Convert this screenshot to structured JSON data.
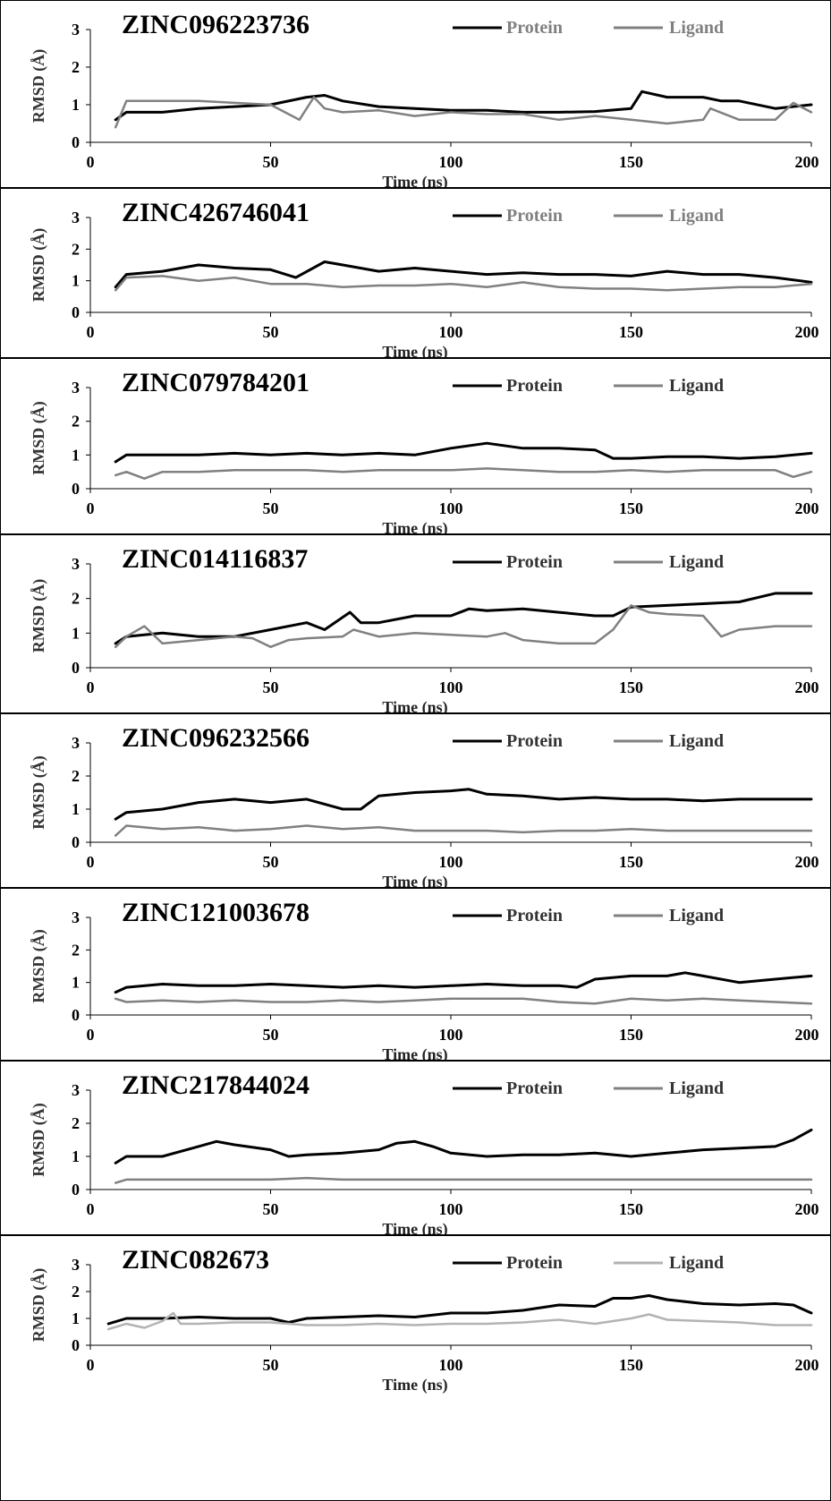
{
  "figure": {
    "x_ticks": [
      "0",
      "50",
      "100",
      "150",
      "200"
    ],
    "y_ticks": [
      "0",
      "1",
      "2",
      "3"
    ],
    "xlabel": "Time (ns)",
    "ylabel": "RMSD (Å)",
    "legend": {
      "protein": "Protein",
      "ligand": "Ligand"
    }
  },
  "chart_data": [
    {
      "type": "line",
      "title": "ZINC096223736",
      "xlabel": "Time (ns)",
      "ylabel": "RMSD (Å)",
      "xlim": [
        0,
        200
      ],
      "ylim": [
        0,
        3
      ],
      "legend_position": "top-right",
      "colors": {
        "protein": "#000000",
        "ligand": "#808080"
      },
      "series": [
        {
          "name": "Protein",
          "x": [
            7,
            10,
            20,
            30,
            40,
            50,
            60,
            65,
            70,
            80,
            90,
            100,
            110,
            120,
            130,
            140,
            150,
            153,
            160,
            170,
            175,
            180,
            190,
            200
          ],
          "values": [
            0.6,
            0.8,
            0.8,
            0.9,
            0.95,
            1.0,
            1.2,
            1.25,
            1.1,
            0.95,
            0.9,
            0.85,
            0.85,
            0.8,
            0.8,
            0.82,
            0.9,
            1.35,
            1.2,
            1.2,
            1.1,
            1.1,
            0.9,
            1.0
          ]
        },
        {
          "name": "Ligand",
          "x": [
            7,
            10,
            20,
            30,
            40,
            50,
            58,
            62,
            65,
            70,
            80,
            90,
            100,
            110,
            120,
            130,
            140,
            150,
            160,
            170,
            172,
            180,
            190,
            195,
            200
          ],
          "values": [
            0.4,
            1.1,
            1.1,
            1.1,
            1.05,
            1.0,
            0.6,
            1.2,
            0.9,
            0.8,
            0.85,
            0.7,
            0.8,
            0.75,
            0.75,
            0.6,
            0.7,
            0.6,
            0.5,
            0.6,
            0.9,
            0.6,
            0.6,
            1.05,
            0.8
          ]
        }
      ]
    },
    {
      "type": "line",
      "title": "ZINC426746041",
      "xlabel": "Time (ns)",
      "ylabel": "RMSD (Å)",
      "xlim": [
        0,
        200
      ],
      "ylim": [
        0,
        3
      ],
      "legend_position": "top-right",
      "colors": {
        "protein": "#000000",
        "ligand": "#808080"
      },
      "series": [
        {
          "name": "Protein",
          "x": [
            7,
            10,
            20,
            30,
            40,
            50,
            57,
            65,
            70,
            80,
            90,
            100,
            110,
            120,
            130,
            140,
            150,
            160,
            170,
            180,
            190,
            200
          ],
          "values": [
            0.8,
            1.2,
            1.3,
            1.5,
            1.4,
            1.35,
            1.1,
            1.6,
            1.5,
            1.3,
            1.4,
            1.3,
            1.2,
            1.25,
            1.2,
            1.2,
            1.15,
            1.3,
            1.2,
            1.2,
            1.1,
            0.95
          ]
        },
        {
          "name": "Ligand",
          "x": [
            7,
            10,
            20,
            30,
            40,
            50,
            60,
            70,
            80,
            90,
            100,
            110,
            120,
            130,
            140,
            150,
            160,
            170,
            180,
            190,
            200
          ],
          "values": [
            0.7,
            1.1,
            1.15,
            1.0,
            1.1,
            0.9,
            0.9,
            0.8,
            0.85,
            0.85,
            0.9,
            0.8,
            0.95,
            0.8,
            0.75,
            0.75,
            0.7,
            0.75,
            0.8,
            0.8,
            0.9
          ]
        }
      ]
    },
    {
      "type": "line",
      "title": "ZINC079784201",
      "xlabel": "Time (ns)",
      "ylabel": "RMSD (Å)",
      "xlim": [
        0,
        200
      ],
      "ylim": [
        0,
        3
      ],
      "legend_position": "top-right",
      "colors": {
        "protein": "#000000",
        "ligand": "#808080"
      },
      "series": [
        {
          "name": "Protein",
          "x": [
            7,
            10,
            20,
            30,
            40,
            50,
            60,
            70,
            80,
            90,
            100,
            110,
            120,
            130,
            140,
            145,
            150,
            160,
            170,
            180,
            190,
            200
          ],
          "values": [
            0.8,
            1.0,
            1.0,
            1.0,
            1.05,
            1.0,
            1.05,
            1.0,
            1.05,
            1.0,
            1.2,
            1.35,
            1.2,
            1.2,
            1.15,
            0.9,
            0.9,
            0.95,
            0.95,
            0.9,
            0.95,
            1.05
          ]
        },
        {
          "name": "Ligand",
          "x": [
            7,
            10,
            15,
            20,
            30,
            40,
            50,
            60,
            70,
            80,
            90,
            100,
            110,
            120,
            130,
            140,
            150,
            160,
            170,
            180,
            190,
            195,
            200
          ],
          "values": [
            0.4,
            0.5,
            0.3,
            0.5,
            0.5,
            0.55,
            0.55,
            0.55,
            0.5,
            0.55,
            0.55,
            0.55,
            0.6,
            0.55,
            0.5,
            0.5,
            0.55,
            0.5,
            0.55,
            0.55,
            0.55,
            0.35,
            0.5
          ]
        }
      ]
    },
    {
      "type": "line",
      "title": "ZINC014116837",
      "xlabel": "Time (ns)",
      "ylabel": "RMSD (Å)",
      "xlim": [
        0,
        200
      ],
      "ylim": [
        0,
        3
      ],
      "legend_position": "top-right",
      "colors": {
        "protein": "#000000",
        "ligand": "#808080"
      },
      "series": [
        {
          "name": "Protein",
          "x": [
            7,
            10,
            20,
            30,
            40,
            50,
            60,
            65,
            72,
            75,
            80,
            90,
            100,
            105,
            110,
            120,
            130,
            140,
            145,
            150,
            160,
            170,
            180,
            190,
            200
          ],
          "values": [
            0.7,
            0.9,
            1.0,
            0.9,
            0.9,
            1.1,
            1.3,
            1.1,
            1.6,
            1.3,
            1.3,
            1.5,
            1.5,
            1.7,
            1.65,
            1.7,
            1.6,
            1.5,
            1.5,
            1.75,
            1.8,
            1.85,
            1.9,
            2.15,
            2.15
          ]
        },
        {
          "name": "Ligand",
          "x": [
            7,
            10,
            15,
            20,
            30,
            40,
            45,
            50,
            55,
            60,
            70,
            73,
            80,
            90,
            100,
            110,
            115,
            120,
            130,
            140,
            145,
            150,
            155,
            160,
            170,
            175,
            180,
            190,
            200
          ],
          "values": [
            0.6,
            0.9,
            1.2,
            0.7,
            0.8,
            0.9,
            0.85,
            0.6,
            0.8,
            0.85,
            0.9,
            1.1,
            0.9,
            1.0,
            0.95,
            0.9,
            1.0,
            0.8,
            0.7,
            0.7,
            1.1,
            1.8,
            1.6,
            1.55,
            1.5,
            0.9,
            1.1,
            1.2,
            1.2
          ]
        }
      ]
    },
    {
      "type": "line",
      "title": "ZINC096232566",
      "xlabel": "Time (ns)",
      "ylabel": "RMSD (Å)",
      "xlim": [
        0,
        200
      ],
      "ylim": [
        0,
        3
      ],
      "legend_position": "top-right",
      "colors": {
        "protein": "#000000",
        "ligand": "#808080"
      },
      "series": [
        {
          "name": "Protein",
          "x": [
            7,
            10,
            20,
            30,
            40,
            50,
            60,
            70,
            75,
            80,
            90,
            100,
            105,
            110,
            120,
            130,
            140,
            150,
            160,
            170,
            180,
            190,
            200
          ],
          "values": [
            0.7,
            0.9,
            1.0,
            1.2,
            1.3,
            1.2,
            1.3,
            1.0,
            1.0,
            1.4,
            1.5,
            1.55,
            1.6,
            1.45,
            1.4,
            1.3,
            1.35,
            1.3,
            1.3,
            1.25,
            1.3,
            1.3,
            1.3
          ]
        },
        {
          "name": "Ligand",
          "x": [
            7,
            10,
            20,
            30,
            40,
            50,
            60,
            70,
            80,
            90,
            100,
            110,
            120,
            130,
            140,
            150,
            160,
            170,
            180,
            190,
            200
          ],
          "values": [
            0.2,
            0.5,
            0.4,
            0.45,
            0.35,
            0.4,
            0.5,
            0.4,
            0.45,
            0.35,
            0.35,
            0.35,
            0.3,
            0.35,
            0.35,
            0.4,
            0.35,
            0.35,
            0.35,
            0.35,
            0.35
          ]
        }
      ]
    },
    {
      "type": "line",
      "title": "ZINC121003678",
      "xlabel": "Time (ns)",
      "ylabel": "RMSD (Å)",
      "xlim": [
        0,
        200
      ],
      "ylim": [
        0,
        3
      ],
      "legend_position": "top-right",
      "colors": {
        "protein": "#000000",
        "ligand": "#808080"
      },
      "series": [
        {
          "name": "Protein",
          "x": [
            7,
            10,
            20,
            30,
            40,
            50,
            60,
            70,
            80,
            90,
            100,
            110,
            120,
            130,
            135,
            140,
            150,
            160,
            165,
            170,
            180,
            190,
            200
          ],
          "values": [
            0.7,
            0.85,
            0.95,
            0.9,
            0.9,
            0.95,
            0.9,
            0.85,
            0.9,
            0.85,
            0.9,
            0.95,
            0.9,
            0.9,
            0.85,
            1.1,
            1.2,
            1.2,
            1.3,
            1.2,
            1.0,
            1.1,
            1.2
          ]
        },
        {
          "name": "Ligand",
          "x": [
            7,
            10,
            20,
            30,
            40,
            50,
            60,
            70,
            80,
            90,
            100,
            110,
            120,
            130,
            140,
            150,
            160,
            170,
            180,
            190,
            200
          ],
          "values": [
            0.5,
            0.4,
            0.45,
            0.4,
            0.45,
            0.4,
            0.4,
            0.45,
            0.4,
            0.45,
            0.5,
            0.5,
            0.5,
            0.4,
            0.35,
            0.5,
            0.45,
            0.5,
            0.45,
            0.4,
            0.35
          ]
        }
      ]
    },
    {
      "type": "line",
      "title": "ZINC217844024",
      "xlabel": "Time (ns)",
      "ylabel": "RMSD (Å)",
      "xlim": [
        0,
        200
      ],
      "ylim": [
        0,
        3
      ],
      "legend_position": "top-right",
      "colors": {
        "protein": "#000000",
        "ligand": "#808080"
      },
      "series": [
        {
          "name": "Protein",
          "x": [
            7,
            10,
            20,
            30,
            35,
            40,
            50,
            55,
            60,
            70,
            80,
            85,
            90,
            95,
            100,
            110,
            120,
            130,
            140,
            150,
            160,
            170,
            180,
            190,
            195,
            200
          ],
          "values": [
            0.8,
            1.0,
            1.0,
            1.3,
            1.45,
            1.35,
            1.2,
            1.0,
            1.05,
            1.1,
            1.2,
            1.4,
            1.45,
            1.3,
            1.1,
            1.0,
            1.05,
            1.05,
            1.1,
            1.0,
            1.1,
            1.2,
            1.25,
            1.3,
            1.5,
            1.8
          ]
        },
        {
          "name": "Ligand",
          "x": [
            7,
            10,
            20,
            30,
            40,
            50,
            60,
            70,
            80,
            90,
            100,
            110,
            120,
            130,
            140,
            150,
            160,
            170,
            180,
            190,
            200
          ],
          "values": [
            0.2,
            0.3,
            0.3,
            0.3,
            0.3,
            0.3,
            0.35,
            0.3,
            0.3,
            0.3,
            0.3,
            0.3,
            0.3,
            0.3,
            0.3,
            0.3,
            0.3,
            0.3,
            0.3,
            0.3,
            0.3
          ]
        }
      ]
    },
    {
      "type": "line",
      "title": "ZINC082673",
      "xlabel": "Time (ns)",
      "ylabel": "RMSD (Å)",
      "xlim": [
        0,
        200
      ],
      "ylim": [
        0,
        3
      ],
      "legend_position": "top-right",
      "colors": {
        "protein": "#000000",
        "ligand": "#b3b3b3"
      },
      "series": [
        {
          "name": "Protein",
          "x": [
            5,
            10,
            20,
            30,
            40,
            50,
            55,
            60,
            70,
            80,
            90,
            100,
            110,
            120,
            130,
            140,
            145,
            150,
            155,
            160,
            170,
            180,
            190,
            195,
            200
          ],
          "values": [
            0.8,
            1.0,
            1.0,
            1.05,
            1.0,
            1.0,
            0.85,
            1.0,
            1.05,
            1.1,
            1.05,
            1.2,
            1.2,
            1.3,
            1.5,
            1.45,
            1.75,
            1.75,
            1.85,
            1.7,
            1.55,
            1.5,
            1.55,
            1.5,
            1.2
          ]
        },
        {
          "name": "Ligand",
          "x": [
            5,
            10,
            15,
            20,
            23,
            25,
            30,
            40,
            50,
            60,
            70,
            80,
            90,
            100,
            110,
            120,
            130,
            140,
            150,
            155,
            160,
            170,
            180,
            190,
            200
          ],
          "values": [
            0.6,
            0.8,
            0.65,
            0.9,
            1.2,
            0.8,
            0.8,
            0.85,
            0.85,
            0.75,
            0.75,
            0.8,
            0.75,
            0.8,
            0.8,
            0.85,
            0.95,
            0.8,
            1.0,
            1.15,
            0.95,
            0.9,
            0.85,
            0.75,
            0.75
          ]
        }
      ]
    }
  ]
}
